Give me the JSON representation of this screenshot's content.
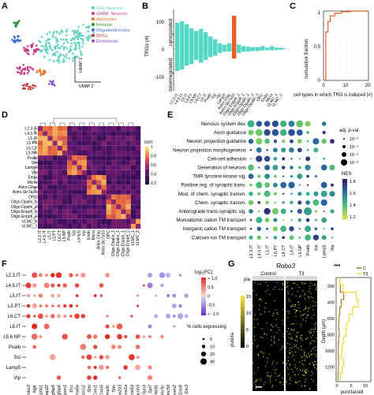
{
  "panels": {
    "A": {
      "label": "A",
      "legend": [
        {
          "label": "Glut. Neurons",
          "color": "#5fd3c0"
        },
        {
          "label": "GABA. Neurons",
          "color": "#cc3a8a"
        },
        {
          "label": "Astrocytes",
          "color": "#e8782a"
        },
        {
          "label": "Immune",
          "color": "#2f8f3a"
        },
        {
          "label": "Oligodendrocytes",
          "color": "#3b6fd1"
        },
        {
          "label": "OPCs",
          "color": "#c83737"
        },
        {
          "label": "Endothelial",
          "color": "#8a56c9"
        }
      ],
      "xaxis": "UMAP 2",
      "yaxis": "UMAP 1"
    },
    "B": {
      "label": "B",
      "ylabel": "TRGs (#)",
      "up_label": "upregulated",
      "down_label": "downregulated",
      "yticks": [
        "100",
        "0",
        "-100"
      ],
      "chart_data": {
        "type": "bar",
        "categories": [
          "L2.3.IT",
          "L4.5.IT",
          "L5.IT",
          "L5.PT",
          "L5.NP",
          "L6.CT",
          "L6.IT",
          "Pvalb",
          "Sst",
          "Vip",
          "Lamp5",
          "Astro.Gfap",
          "Astro.Slc7a10",
          "Oligo.Enpp6_1",
          "Oligo.Enpp6_2",
          "Oligo.Opalin_1",
          "Oligo.Opalin_2",
          "Oligo.Opalin_3",
          "OPC",
          "Endo",
          "Micro",
          "VLMC_1",
          "VLMC_2"
        ],
        "series": [
          {
            "values": [
              95,
              100,
              90,
              75,
              65,
              72,
              60,
              45,
              35,
              20,
              15,
              20,
              120,
              15,
              10,
              8,
              6,
              6,
              10,
              5,
              10,
              5,
              4
            ]
          },
          {
            "values": [
              -80,
              -75,
              -60,
              -55,
              -40,
              -50,
              -40,
              -30,
              -25,
              -15,
              -10,
              -10,
              -35,
              -15,
              -10,
              -10,
              -8,
              -8,
              -6,
              -5,
              -5,
              -4,
              -3
            ]
          }
        ],
        "highlight_category": "Astro.Slc7a10",
        "highlight_color": "#f05a24",
        "bar_color": "#56d6c4",
        "ylim": [
          -130,
          130
        ]
      }
    },
    "C": {
      "label": "C",
      "ylabel": "cumulative fraction",
      "xlabel": "cell types in which TRG is induced (#)",
      "yticks": [
        "1",
        "0.5",
        "0"
      ],
      "xticks": [
        "0",
        "10",
        "20"
      ],
      "chart_data": {
        "type": "line",
        "x": [
          0,
          1,
          2,
          3,
          5,
          8,
          12,
          20
        ],
        "y": [
          0.0,
          0.7,
          0.85,
          0.93,
          0.97,
          0.99,
          1.0,
          1.0
        ],
        "xlim": [
          0,
          20
        ],
        "ylim": [
          0,
          1
        ],
        "color": "#e8602a"
      }
    },
    "D": {
      "label": "D",
      "cbar_title": "corr.",
      "cbar_ticks": [
        "1",
        "0.8",
        "0.6",
        "0.4",
        "0.2"
      ],
      "labels": [
        "L2.3.IT",
        "L4.5.IT",
        "L5.IT",
        "L5.PT",
        "L6.CT",
        "L5.NP",
        "Pvalb",
        "Sst",
        "Lamp5",
        "Vip",
        "Endo",
        "Micro",
        "Astro.Gfap",
        "Astro.Slc7a10",
        "OPC",
        "Oligo.Opalin_1",
        "Oligo.Opalin_2",
        "Oligo.Enpp6_1",
        "Oligo.Enpp6_2",
        "VLMC_1",
        "VLMC_2"
      ]
    },
    "E": {
      "label": "E",
      "terms": [
        "Nervous system dev.",
        "Axon guidance",
        "Neuron projection guidance",
        "Neuron projection morphogenesis",
        "Cell-cell adhesion",
        "Generation of neurons",
        "TMR tyrosine kinase sig.",
        "Positive reg. of synaptic trans.",
        "Mod. of chem. synaptic transm.",
        "Chem. synaptic transm.",
        "Anterograde trans-synaptic sig.",
        "Monoatomic cation TM transport",
        "Inorganic cation TM transport",
        "Calcium ion TM transport"
      ],
      "columns": [
        "L2.3.IT",
        "L4.5.IT",
        "L5.IT",
        "L5.PT",
        "L6.CT",
        "L6.IT",
        "L5.NP",
        "Pvalb",
        "Sst",
        "Lamp5",
        "Vip"
      ],
      "size_title": "adj. p-val.",
      "size_labels": [
        "10⁻²",
        "10⁻⁴",
        "10⁻⁶",
        "10⁻⁸"
      ],
      "nes_title": "NES",
      "nes_ticks": [
        "1.8",
        "1.6",
        "1.4",
        "1.2"
      ]
    },
    "F": {
      "label": "F",
      "rows": [
        "L2.3.IT",
        "L4.5.IT",
        "L5.IT",
        "L5.PT",
        "L6.CT",
        "L6.IT",
        "L5.6.NP",
        "Pvalb",
        "Sst",
        "Lamp5",
        "Vip"
      ],
      "genes": [
        "Robo3",
        "Ngfr",
        "Ephb1",
        "Arhgap22",
        "Igfbp5",
        "Igfbp6",
        "Spon1",
        "Dcc",
        "Sema5a",
        "Sorcs2",
        "Shh",
        "Crim1",
        "Cntn5",
        "Sema3c",
        "Shh",
        "Cacna2d3",
        "Cacna1a",
        "Cacna1d",
        "Cacnb3",
        "Syn3",
        "Syt7",
        "Nell1",
        "Unc5c",
        "Unc5d",
        "Tenm2",
        "Grm8",
        "Dio3"
      ],
      "fc_title": "log₂(FC)",
      "fc_ticks": [
        "> 1.0",
        "0.5",
        "0",
        "-0.5",
        "< -1.0"
      ],
      "size_title": "% cells expressing",
      "size_labels": [
        "5",
        "10",
        "20",
        "40"
      ]
    },
    "G": {
      "label": "G",
      "title": "Robo3",
      "col_labels": [
        "Control",
        "T3"
      ],
      "pia_label": "pia",
      "puncta_label": "puncta",
      "puncta_ticks": [
        "15",
        "10",
        "5",
        "0"
      ],
      "significance": "***",
      "legend": [
        {
          "label": "C",
          "color": "#a6741e"
        },
        {
          "label": "T3",
          "color": "#f2d622"
        }
      ],
      "ylabel": "Depth (μm)",
      "xlabel": "puncta/cell",
      "yticks": [
        "200",
        "400",
        "600",
        "800",
        "1000",
        "1200"
      ],
      "xticks": [
        "0",
        "5",
        "10"
      ]
    }
  }
}
